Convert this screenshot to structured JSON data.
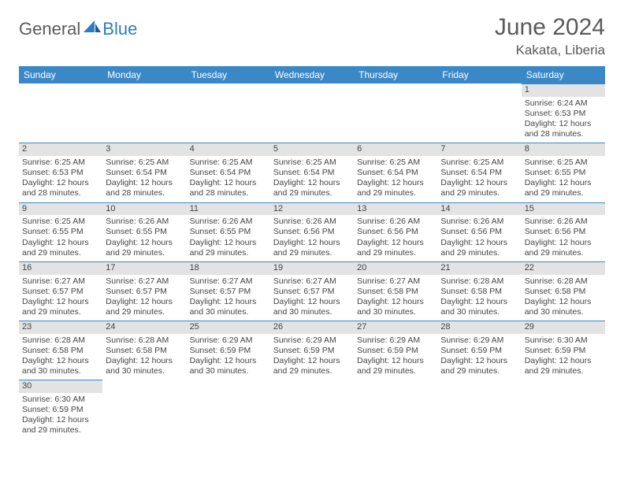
{
  "logo": {
    "dark": "General",
    "blue": "Blue"
  },
  "title": "June 2024",
  "location": "Kakata, Liberia",
  "colors": {
    "header_bg": "#3b88c7",
    "header_text": "#ffffff",
    "daynum_bg": "#e3e3e3",
    "border": "#3b88c7",
    "body_bg": "#ffffff",
    "text": "#444444",
    "logo_dark": "#5a5a5a",
    "logo_blue": "#2d7cc1"
  },
  "weekdays": [
    "Sunday",
    "Monday",
    "Tuesday",
    "Wednesday",
    "Thursday",
    "Friday",
    "Saturday"
  ],
  "weeks": [
    [
      null,
      null,
      null,
      null,
      null,
      null,
      {
        "n": "1",
        "sr": "6:24 AM",
        "ss": "6:53 PM",
        "dh": "12",
        "dm": "28"
      }
    ],
    [
      {
        "n": "2",
        "sr": "6:25 AM",
        "ss": "6:53 PM",
        "dh": "12",
        "dm": "28"
      },
      {
        "n": "3",
        "sr": "6:25 AM",
        "ss": "6:54 PM",
        "dh": "12",
        "dm": "28"
      },
      {
        "n": "4",
        "sr": "6:25 AM",
        "ss": "6:54 PM",
        "dh": "12",
        "dm": "28"
      },
      {
        "n": "5",
        "sr": "6:25 AM",
        "ss": "6:54 PM",
        "dh": "12",
        "dm": "29"
      },
      {
        "n": "6",
        "sr": "6:25 AM",
        "ss": "6:54 PM",
        "dh": "12",
        "dm": "29"
      },
      {
        "n": "7",
        "sr": "6:25 AM",
        "ss": "6:54 PM",
        "dh": "12",
        "dm": "29"
      },
      {
        "n": "8",
        "sr": "6:25 AM",
        "ss": "6:55 PM",
        "dh": "12",
        "dm": "29"
      }
    ],
    [
      {
        "n": "9",
        "sr": "6:25 AM",
        "ss": "6:55 PM",
        "dh": "12",
        "dm": "29"
      },
      {
        "n": "10",
        "sr": "6:26 AM",
        "ss": "6:55 PM",
        "dh": "12",
        "dm": "29"
      },
      {
        "n": "11",
        "sr": "6:26 AM",
        "ss": "6:55 PM",
        "dh": "12",
        "dm": "29"
      },
      {
        "n": "12",
        "sr": "6:26 AM",
        "ss": "6:56 PM",
        "dh": "12",
        "dm": "29"
      },
      {
        "n": "13",
        "sr": "6:26 AM",
        "ss": "6:56 PM",
        "dh": "12",
        "dm": "29"
      },
      {
        "n": "14",
        "sr": "6:26 AM",
        "ss": "6:56 PM",
        "dh": "12",
        "dm": "29"
      },
      {
        "n": "15",
        "sr": "6:26 AM",
        "ss": "6:56 PM",
        "dh": "12",
        "dm": "29"
      }
    ],
    [
      {
        "n": "16",
        "sr": "6:27 AM",
        "ss": "6:57 PM",
        "dh": "12",
        "dm": "29"
      },
      {
        "n": "17",
        "sr": "6:27 AM",
        "ss": "6:57 PM",
        "dh": "12",
        "dm": "29"
      },
      {
        "n": "18",
        "sr": "6:27 AM",
        "ss": "6:57 PM",
        "dh": "12",
        "dm": "30"
      },
      {
        "n": "19",
        "sr": "6:27 AM",
        "ss": "6:57 PM",
        "dh": "12",
        "dm": "30"
      },
      {
        "n": "20",
        "sr": "6:27 AM",
        "ss": "6:58 PM",
        "dh": "12",
        "dm": "30"
      },
      {
        "n": "21",
        "sr": "6:28 AM",
        "ss": "6:58 PM",
        "dh": "12",
        "dm": "30"
      },
      {
        "n": "22",
        "sr": "6:28 AM",
        "ss": "6:58 PM",
        "dh": "12",
        "dm": "30"
      }
    ],
    [
      {
        "n": "23",
        "sr": "6:28 AM",
        "ss": "6:58 PM",
        "dh": "12",
        "dm": "30"
      },
      {
        "n": "24",
        "sr": "6:28 AM",
        "ss": "6:58 PM",
        "dh": "12",
        "dm": "30"
      },
      {
        "n": "25",
        "sr": "6:29 AM",
        "ss": "6:59 PM",
        "dh": "12",
        "dm": "30"
      },
      {
        "n": "26",
        "sr": "6:29 AM",
        "ss": "6:59 PM",
        "dh": "12",
        "dm": "29"
      },
      {
        "n": "27",
        "sr": "6:29 AM",
        "ss": "6:59 PM",
        "dh": "12",
        "dm": "29"
      },
      {
        "n": "28",
        "sr": "6:29 AM",
        "ss": "6:59 PM",
        "dh": "12",
        "dm": "29"
      },
      {
        "n": "29",
        "sr": "6:30 AM",
        "ss": "6:59 PM",
        "dh": "12",
        "dm": "29"
      }
    ],
    [
      {
        "n": "30",
        "sr": "6:30 AM",
        "ss": "6:59 PM",
        "dh": "12",
        "dm": "29"
      },
      null,
      null,
      null,
      null,
      null,
      null
    ]
  ]
}
